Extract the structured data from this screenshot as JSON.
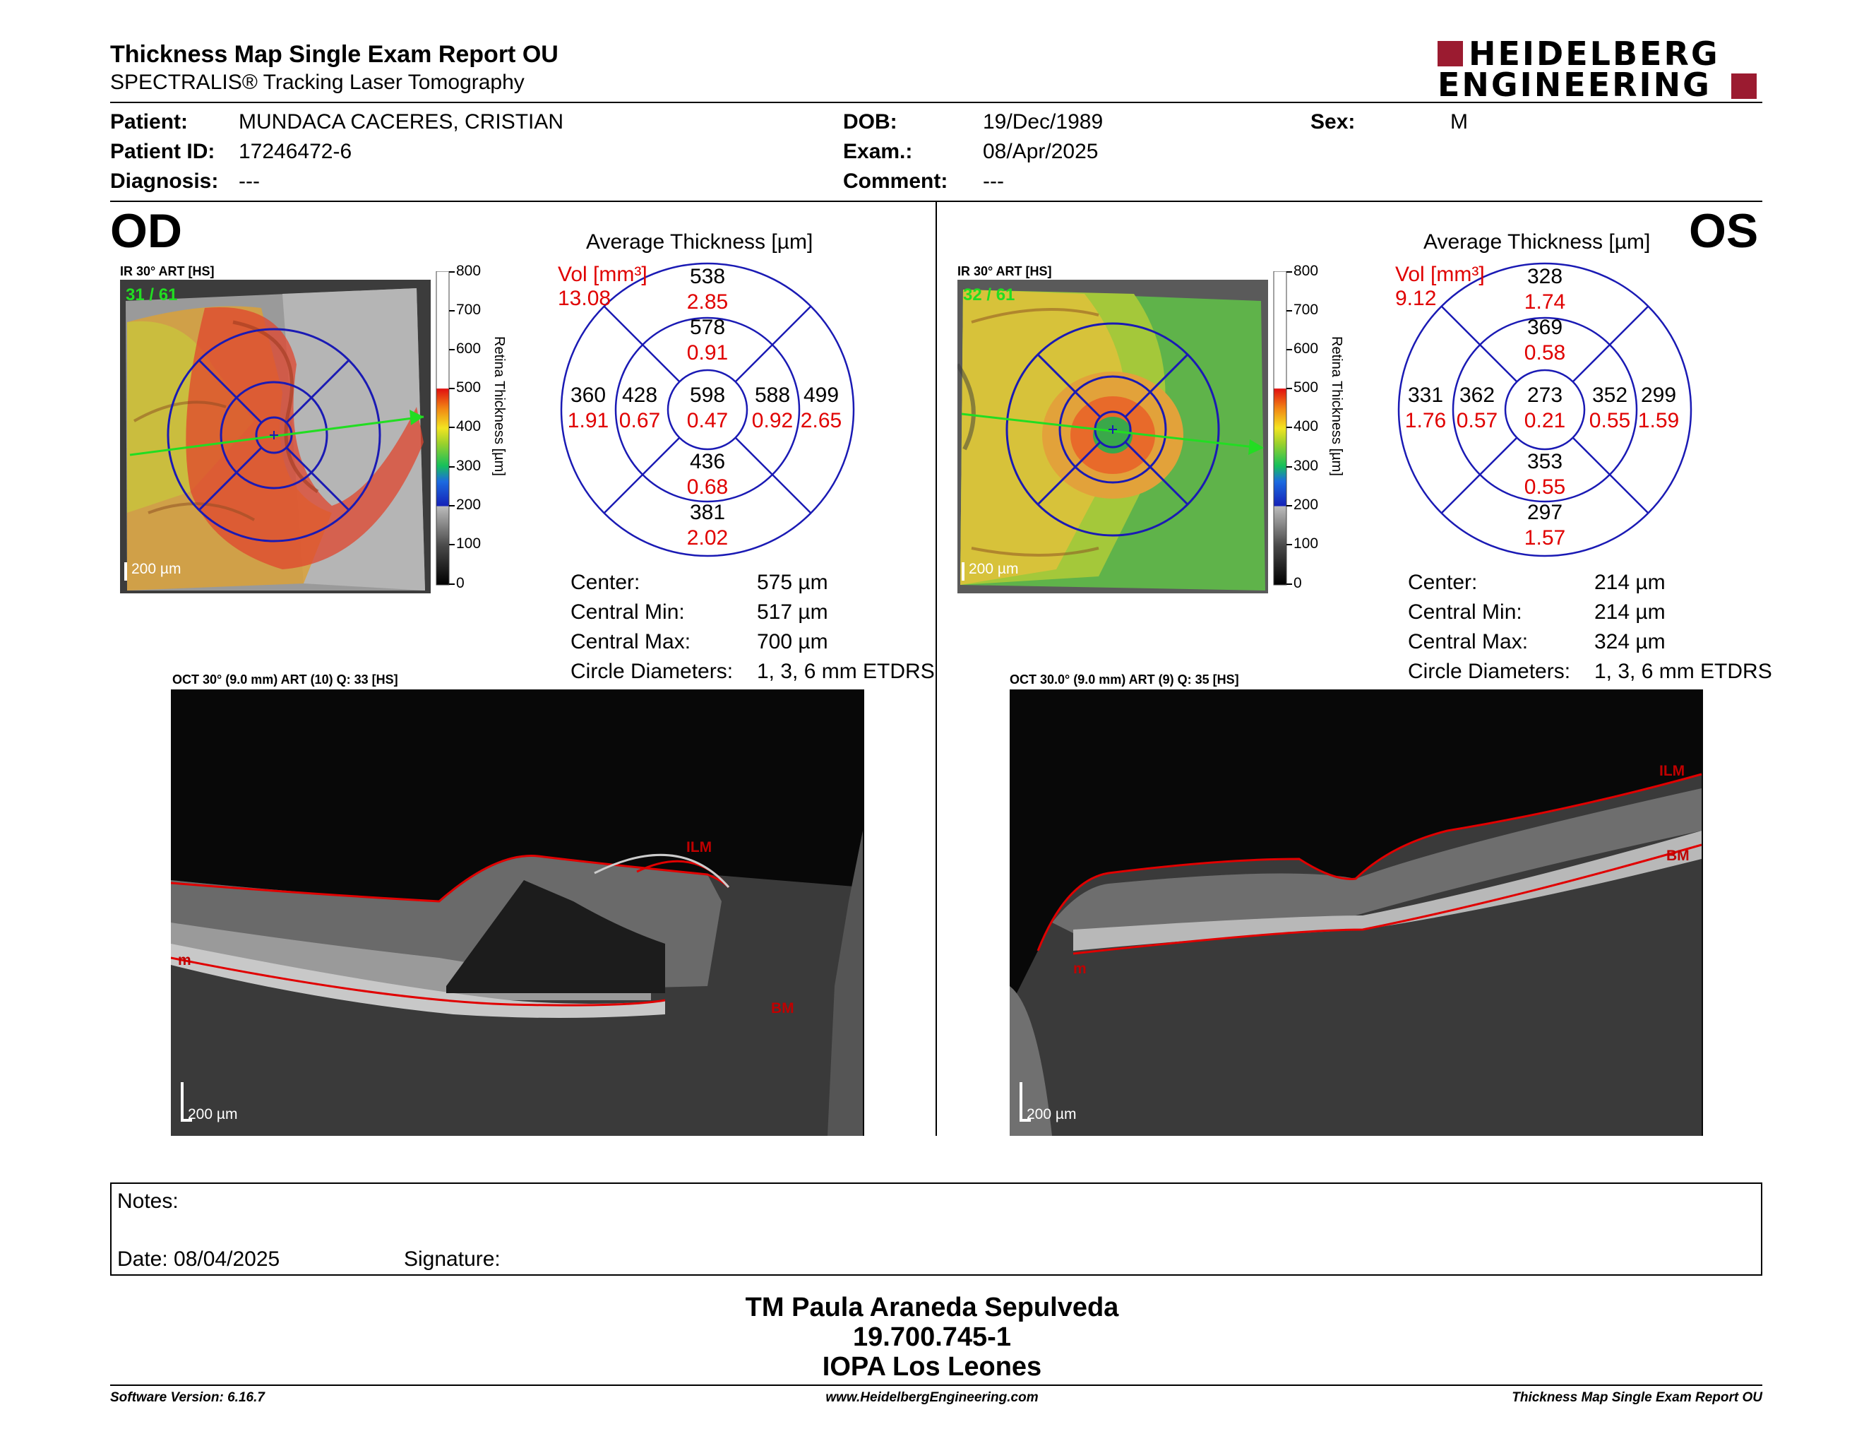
{
  "header": {
    "title": "Thickness Map Single Exam Report OU",
    "subtitle": "SPECTRALIS® Tracking Laser Tomography",
    "logo_line1": "HEIDELBERG",
    "logo_line2": "ENGINEERING"
  },
  "patient": {
    "patient_label": "Patient:",
    "patient_value": "MUNDACA CACERES, CRISTIAN",
    "id_label": "Patient ID:",
    "id_value": "17246472-6",
    "diagnosis_label": "Diagnosis:",
    "diagnosis_value": "---",
    "dob_label": "DOB:",
    "dob_value": "19/Dec/1989",
    "exam_label": "Exam.:",
    "exam_value": "08/Apr/2025",
    "comment_label": "Comment:",
    "comment_value": "---",
    "sex_label": "Sex:",
    "sex_value": "M"
  },
  "scale": {
    "ticks": [
      "800",
      "700",
      "600",
      "500",
      "400",
      "300",
      "200",
      "100",
      "0"
    ],
    "axis_label": "Retina  Thickness [µm]",
    "scalebar": "200 µm"
  },
  "od": {
    "eye": "OD",
    "ir_caption": "IR 30° ART [HS]",
    "frame": "31 / 61",
    "avg_title": "Average Thickness [µm]",
    "vol_label": "Vol [mm³]",
    "vol_total": "13.08",
    "grid": {
      "center": [
        "598",
        "0.47"
      ],
      "inner_top": [
        "578",
        "0.91"
      ],
      "inner_bottom": [
        "436",
        "0.68"
      ],
      "inner_left": [
        "428",
        "0.67"
      ],
      "inner_right": [
        "588",
        "0.92"
      ],
      "outer_top": [
        "538",
        "2.85"
      ],
      "outer_bottom": [
        "381",
        "2.02"
      ],
      "outer_left": [
        "360",
        "1.91"
      ],
      "outer_right": [
        "499",
        "2.65"
      ]
    },
    "stats": [
      {
        "label": "Center:",
        "value": "575 µm"
      },
      {
        "label": "Central Min:",
        "value": "517 µm"
      },
      {
        "label": "Central Max:",
        "value": "700 µm"
      },
      {
        "label": "Circle Diameters:",
        "value": "1, 3, 6 mm ETDRS"
      }
    ],
    "oct_caption": "OCT 30° (9.0 mm) ART (10) Q: 33 [HS]",
    "layer_top": "ILM",
    "layer_bottom": "BM",
    "layer_side": "m"
  },
  "os": {
    "eye": "OS",
    "ir_caption": "IR 30° ART [HS]",
    "frame": "32 / 61",
    "avg_title": "Average Thickness [µm]",
    "vol_label": "Vol [mm³]",
    "vol_total": "9.12",
    "grid": {
      "center": [
        "273",
        "0.21"
      ],
      "inner_top": [
        "369",
        "0.58"
      ],
      "inner_bottom": [
        "353",
        "0.55"
      ],
      "inner_left": [
        "362",
        "0.57"
      ],
      "inner_right": [
        "352",
        "0.55"
      ],
      "outer_top": [
        "328",
        "1.74"
      ],
      "outer_bottom": [
        "297",
        "1.57"
      ],
      "outer_left": [
        "331",
        "1.76"
      ],
      "outer_right": [
        "299",
        "1.59"
      ]
    },
    "stats": [
      {
        "label": "Center:",
        "value": "214 µm"
      },
      {
        "label": "Central Min:",
        "value": "214 µm"
      },
      {
        "label": "Central Max:",
        "value": "324 µm"
      },
      {
        "label": "Circle Diameters:",
        "value": "1, 3, 6 mm ETDRS"
      }
    ],
    "oct_caption": "OCT 30.0° (9.0 mm) ART (9) Q: 35 [HS]",
    "layer_top": "ILM",
    "layer_bottom": "BM",
    "layer_side": "m"
  },
  "notes": {
    "notes_label": "Notes:",
    "date_label": "Date: 08/04/2025",
    "signature_label": "Signature:"
  },
  "signer": {
    "name": "TM Paula Araneda Sepulveda",
    "rut": "19.700.745-1",
    "institution": "IOPA Los Leones"
  },
  "footer": {
    "software": "Software Version: 6.16.7",
    "website": "www.HeidelbergEngineering.com",
    "report": "Thickness Map Single Exam Report OU"
  },
  "colors": {
    "accent_red": "#e00000",
    "grid_blue": "#1a1ab4",
    "logo_red": "#9b1b30",
    "scan_line": "#22dd22"
  }
}
